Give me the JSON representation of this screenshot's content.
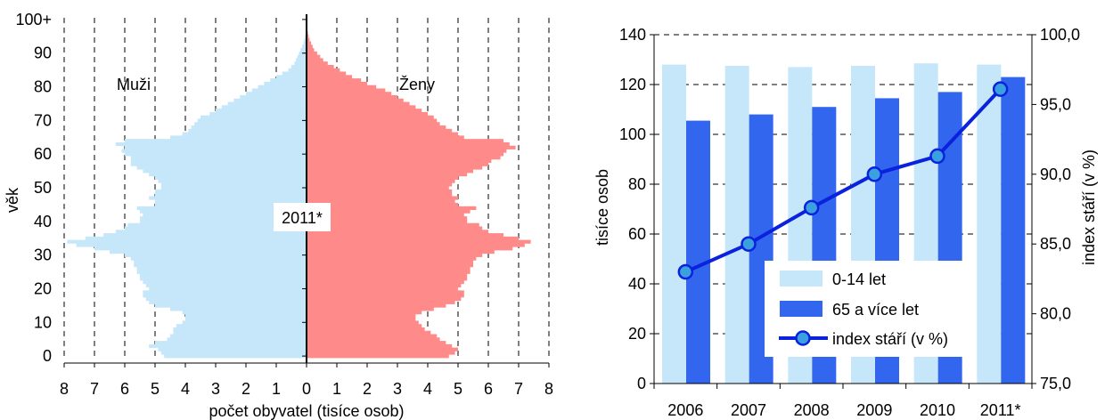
{
  "chart_data": [
    {
      "type": "bar",
      "subtype": "population-pyramid",
      "annotation": "2011*",
      "xlabel": "počet obyvatel (tisíce osob)",
      "ylabel": "věk",
      "x_ticks": [
        "8",
        "7",
        "6",
        "5",
        "4",
        "3",
        "2",
        "1",
        "0",
        "1",
        "2",
        "3",
        "4",
        "5",
        "6",
        "7",
        "8"
      ],
      "y_ticks": [
        "0",
        "10",
        "20",
        "30",
        "40",
        "50",
        "60",
        "70",
        "80",
        "90",
        "100+"
      ],
      "xlim_each_side": [
        0,
        8
      ],
      "ylim": [
        0,
        100
      ],
      "grid": "vertical dashed",
      "age_groups": [
        0,
        1,
        2,
        3,
        4,
        5,
        6,
        7,
        8,
        9,
        10,
        11,
        12,
        13,
        14,
        15,
        16,
        17,
        18,
        19,
        20,
        21,
        22,
        23,
        24,
        25,
        26,
        27,
        28,
        29,
        30,
        31,
        32,
        33,
        34,
        35,
        36,
        37,
        38,
        39,
        40,
        41,
        42,
        43,
        44,
        45,
        46,
        47,
        48,
        49,
        50,
        51,
        52,
        53,
        54,
        55,
        56,
        57,
        58,
        59,
        60,
        61,
        62,
        63,
        64,
        65,
        66,
        67,
        68,
        69,
        70,
        71,
        72,
        73,
        74,
        75,
        76,
        77,
        78,
        79,
        80,
        81,
        82,
        83,
        84,
        85,
        86,
        87,
        88,
        89,
        90,
        91,
        92,
        93,
        94,
        95,
        96,
        97,
        98,
        99,
        100
      ],
      "series": [
        {
          "name": "Muži",
          "color": "#c5e7f9",
          "values": [
            4.7,
            4.8,
            4.9,
            5.2,
            5.0,
            4.6,
            4.5,
            4.4,
            4.4,
            4.3,
            4.1,
            4.0,
            4.0,
            4.1,
            4.5,
            5.0,
            5.2,
            5.3,
            5.4,
            5.4,
            5.2,
            5.3,
            5.4,
            5.5,
            5.5,
            5.6,
            5.6,
            5.7,
            5.7,
            5.8,
            6.0,
            6.5,
            7.0,
            7.6,
            7.9,
            7.3,
            6.7,
            6.3,
            6.0,
            5.9,
            5.5,
            5.5,
            5.4,
            5.5,
            5.6,
            5.0,
            5.0,
            5.2,
            5.0,
            5.0,
            4.8,
            4.8,
            4.9,
            5.0,
            5.2,
            5.4,
            5.6,
            5.8,
            5.8,
            5.8,
            6.0,
            6.1,
            6.0,
            6.3,
            6.0,
            4.5,
            4.1,
            3.9,
            3.8,
            3.7,
            3.6,
            3.5,
            3.2,
            3.0,
            2.8,
            2.6,
            2.4,
            2.2,
            2.0,
            1.8,
            1.6,
            1.4,
            1.2,
            1.0,
            0.8,
            0.6,
            0.5,
            0.4,
            0.35,
            0.3,
            0.25,
            0.2,
            0.15,
            0.1,
            0.08,
            0.05,
            0.03,
            0.02,
            0.01,
            0.01,
            0.01
          ]
        },
        {
          "name": "Ženy",
          "color": "#ff8a8a",
          "values": [
            4.7,
            4.9,
            5.0,
            4.8,
            4.6,
            4.4,
            4.3,
            4.1,
            3.9,
            3.8,
            3.7,
            3.6,
            3.6,
            3.8,
            4.2,
            4.6,
            4.9,
            5.1,
            5.2,
            5.2,
            5.0,
            5.1,
            5.2,
            5.3,
            5.3,
            5.4,
            5.4,
            5.5,
            5.5,
            5.6,
            5.8,
            6.2,
            6.8,
            7.2,
            7.4,
            7.0,
            6.5,
            6.0,
            5.8,
            5.7,
            5.3,
            5.3,
            5.2,
            5.4,
            5.6,
            5.0,
            4.9,
            5.0,
            4.8,
            4.8,
            4.7,
            4.8,
            4.9,
            5.0,
            5.3,
            5.5,
            5.8,
            6.0,
            6.1,
            6.4,
            6.5,
            6.6,
            6.9,
            6.7,
            6.5,
            5.2,
            5.0,
            4.8,
            4.6,
            4.4,
            4.3,
            4.2,
            4.0,
            3.8,
            3.6,
            3.4,
            3.2,
            3.0,
            2.8,
            2.6,
            2.3,
            2.0,
            1.8,
            1.5,
            1.3,
            1.1,
            0.9,
            0.7,
            0.55,
            0.45,
            0.35,
            0.25,
            0.2,
            0.15,
            0.1,
            0.07,
            0.05,
            0.03,
            0.02,
            0.01,
            0.01
          ]
        }
      ],
      "legend": "inline labels (Muži top-left, Ženy top-right)"
    },
    {
      "type": "bar",
      "subtype": "bar-line-dual-axis",
      "categories": [
        "2006",
        "2007",
        "2008",
        "2009",
        "2010",
        "2011*"
      ],
      "ylabel": "tisíce osob",
      "y2label": "index stáří (v %)",
      "ylim": [
        0,
        140
      ],
      "y_ticks": [
        "0",
        "20",
        "40",
        "60",
        "80",
        "100",
        "120",
        "140"
      ],
      "y2lim": [
        75.0,
        100.0
      ],
      "y2_ticks": [
        "75,0",
        "80,0",
        "85,0",
        "90,0",
        "95,0",
        "100,0"
      ],
      "grid": "horizontal dashed",
      "legend": "bottom-right inside plot",
      "series": [
        {
          "name": "0-14 let",
          "kind": "bar",
          "axis": "left",
          "color": "#c5e7f9",
          "values": [
            128,
            127.5,
            127,
            127.5,
            128.5,
            128
          ]
        },
        {
          "name": "65 a více let",
          "kind": "bar",
          "axis": "left",
          "color": "#3366ee",
          "values": [
            105.5,
            108,
            111,
            114.5,
            117,
            123
          ]
        },
        {
          "name": "index stáří (v %)",
          "kind": "line",
          "axis": "right",
          "color": "#0a22dd",
          "marker_fill": "#3aa0e0",
          "values": [
            83.0,
            85.0,
            87.6,
            90.0,
            91.3,
            96.1
          ]
        }
      ]
    }
  ]
}
